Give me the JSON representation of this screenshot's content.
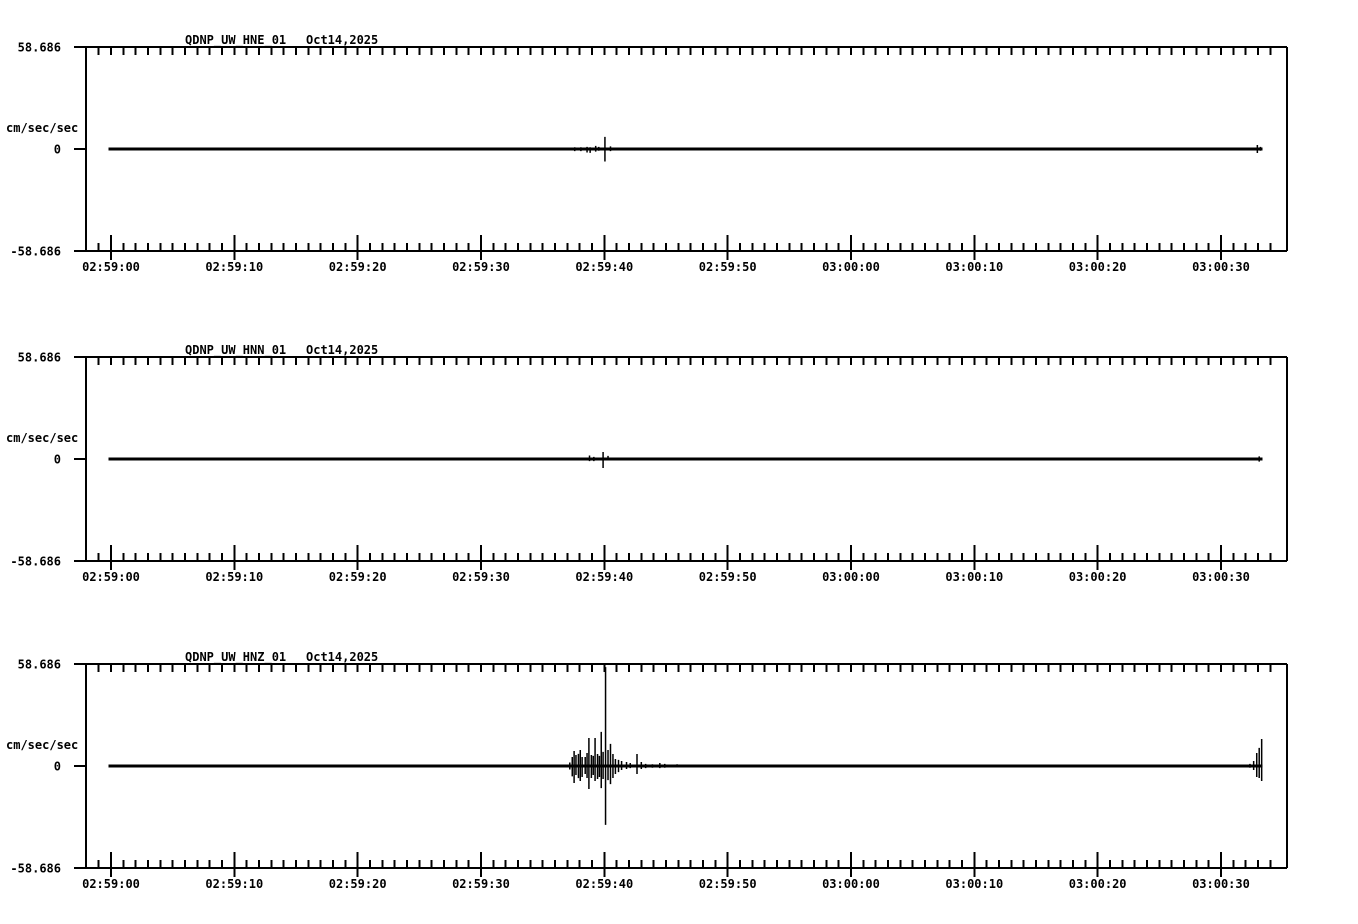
{
  "page": {
    "background": "#ffffff",
    "foreground": "#000000"
  },
  "chart_data": [
    {
      "type": "line",
      "panel": "top",
      "title": "QDNP_UW_HNE_01",
      "date": "Oct14,2025",
      "ylabel": "cm/sec/sec",
      "ytick_labels": [
        "58.686",
        "0",
        "-58.686"
      ],
      "ylim": [
        -58.686,
        58.686
      ],
      "xtick_labels": [
        "02:59:00",
        "02:59:10",
        "02:59:20",
        "02:59:30",
        "02:59:40",
        "02:59:50",
        "03:00:00",
        "03:00:10",
        "03:00:20",
        "03:00:30"
      ],
      "x_major_interval_sec": 10,
      "x_minor_interval_sec": 1,
      "xlim_sec": [
        -2.0,
        95.3
      ],
      "trace_range_sec": [
        -0.2,
        93.35
      ],
      "baseline": 0,
      "grid": false,
      "spike_format": [
        "t_sec_after_02:59:00",
        "amplitude_up",
        "amplitude_down"
      ],
      "spikes": [
        [
          37.6,
          1.0,
          1.2
        ],
        [
          38.1,
          1.0,
          1.2
        ],
        [
          38.6,
          1.2,
          2.0
        ],
        [
          38.85,
          1.0,
          2.2
        ],
        [
          39.3,
          1.8,
          1.5
        ],
        [
          39.55,
          1.2,
          1.0
        ],
        [
          40.05,
          7.0,
          7.2
        ],
        [
          40.5,
          1.5,
          1.2
        ],
        [
          92.95,
          2.3,
          2.3
        ],
        [
          93.2,
          1.2,
          1.0
        ]
      ]
    },
    {
      "type": "line",
      "panel": "middle",
      "title": "QDNP_UW_HNN_01",
      "date": "Oct14,2025",
      "ylabel": "cm/sec/sec",
      "ytick_labels": [
        "58.686",
        "0",
        "-58.686"
      ],
      "ylim": [
        -58.686,
        58.686
      ],
      "xtick_labels": [
        "02:59:00",
        "02:59:10",
        "02:59:20",
        "02:59:30",
        "02:59:40",
        "02:59:50",
        "03:00:00",
        "03:00:10",
        "03:00:20",
        "03:00:30"
      ],
      "x_major_interval_sec": 10,
      "x_minor_interval_sec": 1,
      "xlim_sec": [
        -2.0,
        95.3
      ],
      "trace_range_sec": [
        -0.2,
        93.35
      ],
      "baseline": 0,
      "grid": false,
      "spike_format": [
        "t_sec_after_02:59:00",
        "amplitude_up",
        "amplitude_down"
      ],
      "spikes": [
        [
          38.8,
          2.0,
          1.2
        ],
        [
          39.15,
          1.2,
          1.2
        ],
        [
          39.9,
          4.0,
          5.2
        ],
        [
          40.3,
          1.8,
          0.8
        ],
        [
          40.6,
          0.8,
          0.6
        ],
        [
          93.1,
          1.5,
          1.5
        ]
      ]
    },
    {
      "type": "line",
      "panel": "bottom",
      "title": "QDNP_UW_HNZ_01",
      "date": "Oct14,2025",
      "ylabel": "cm/sec/sec",
      "ytick_labels": [
        "58.686",
        "0",
        "-58.686"
      ],
      "ylim": [
        -58.686,
        58.686
      ],
      "xtick_labels": [
        "02:59:00",
        "02:59:10",
        "02:59:20",
        "02:59:30",
        "02:59:40",
        "02:59:50",
        "03:00:00",
        "03:00:10",
        "03:00:20",
        "03:00:30"
      ],
      "x_major_interval_sec": 10,
      "x_minor_interval_sec": 1,
      "xlim_sec": [
        -2.0,
        95.3
      ],
      "trace_range_sec": [
        -0.2,
        93.35
      ],
      "baseline": 0,
      "grid": false,
      "spike_format": [
        "t_sec_after_02:59:00",
        "amplitude_up",
        "amplitude_down"
      ],
      "spikes": [
        [
          1.9,
          0.8,
          0.8
        ],
        [
          4.9,
          0.8,
          0.8
        ],
        [
          7.0,
          0.8,
          0.8
        ],
        [
          8.1,
          0.8,
          0.8
        ],
        [
          10.2,
          0.8,
          0.8
        ],
        [
          11.8,
          0.8,
          0.8
        ],
        [
          14.5,
          0.8,
          0.8
        ],
        [
          17.1,
          0.8,
          0.8
        ],
        [
          20.0,
          0.8,
          0.8
        ],
        [
          22.8,
          0.8,
          0.8
        ],
        [
          25.6,
          0.8,
          0.8
        ],
        [
          28.4,
          0.8,
          0.8
        ],
        [
          31.2,
          0.8,
          0.8
        ],
        [
          34.0,
          0.8,
          0.8
        ],
        [
          36.3,
          0.8,
          0.8
        ],
        [
          37.2,
          2.0,
          2.0
        ],
        [
          37.4,
          5.2,
          6.0
        ],
        [
          37.55,
          8.6,
          9.8
        ],
        [
          37.7,
          6.3,
          5.2
        ],
        [
          37.9,
          7.0,
          7.0
        ],
        [
          38.05,
          9.2,
          8.6
        ],
        [
          38.2,
          5.2,
          6.3
        ],
        [
          38.45,
          5.2,
          4.6
        ],
        [
          38.6,
          7.5,
          6.9
        ],
        [
          38.75,
          16.1,
          13.2
        ],
        [
          38.95,
          6.3,
          6.9
        ],
        [
          39.1,
          5.8,
          5.2
        ],
        [
          39.25,
          16.1,
          8.6
        ],
        [
          39.45,
          6.9,
          7.5
        ],
        [
          39.6,
          5.8,
          6.3
        ],
        [
          39.75,
          19.6,
          12.7
        ],
        [
          39.9,
          8.1,
          7.5
        ],
        [
          40.1,
          56.9,
          33.9
        ],
        [
          40.3,
          9.2,
          8.1
        ],
        [
          40.5,
          12.7,
          10.4
        ],
        [
          40.7,
          6.9,
          6.9
        ],
        [
          40.9,
          4.0,
          4.6
        ],
        [
          41.15,
          3.5,
          3.5
        ],
        [
          41.4,
          2.9,
          2.3
        ],
        [
          41.8,
          2.3,
          1.7
        ],
        [
          42.1,
          1.7,
          1.2
        ],
        [
          42.65,
          6.9,
          4.6
        ],
        [
          43.0,
          2.3,
          1.7
        ],
        [
          43.35,
          1.2,
          1.2
        ],
        [
          43.9,
          1.0,
          1.0
        ],
        [
          44.5,
          1.7,
          1.2
        ],
        [
          44.9,
          1.2,
          1.0
        ],
        [
          45.9,
          1.0,
          0.8
        ],
        [
          47.0,
          0.8,
          0.8
        ],
        [
          48.6,
          0.7,
          0.7
        ],
        [
          50.5,
          0.6,
          0.6
        ],
        [
          53.5,
          0.6,
          0.6
        ],
        [
          56.5,
          0.6,
          0.6
        ],
        [
          59.5,
          0.6,
          0.6
        ],
        [
          62.5,
          0.6,
          0.6
        ],
        [
          65.5,
          0.6,
          0.6
        ],
        [
          68.5,
          0.6,
          0.6
        ],
        [
          71.5,
          0.6,
          0.6
        ],
        [
          74.5,
          0.6,
          0.6
        ],
        [
          77.5,
          0.6,
          0.6
        ],
        [
          80.5,
          0.6,
          0.6
        ],
        [
          83.5,
          0.6,
          0.6
        ],
        [
          86.5,
          0.6,
          0.6
        ],
        [
          89.5,
          0.6,
          0.6
        ],
        [
          91.9,
          0.8,
          0.8
        ],
        [
          92.35,
          1.2,
          1.0
        ],
        [
          92.65,
          2.9,
          2.3
        ],
        [
          92.9,
          7.5,
          6.3
        ],
        [
          93.1,
          10.4,
          6.9
        ],
        [
          93.3,
          15.5,
          8.6
        ]
      ]
    }
  ]
}
